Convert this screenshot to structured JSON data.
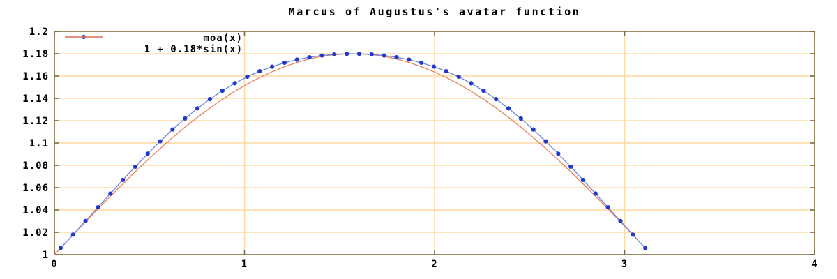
{
  "title": "Marcus of Augustus's avatar function",
  "legend": {
    "position": "top-left",
    "items": [
      {
        "label": "moa(x)"
      },
      {
        "label": "1 + 0.18*sin(x)"
      }
    ]
  },
  "chart_data": {
    "type": "line",
    "title": "Marcus of Augustus's avatar function",
    "xlabel": "",
    "ylabel": "",
    "xlim": [
      0,
      4
    ],
    "ylim": [
      1,
      1.2
    ],
    "grid": true,
    "legend_position": "top-left",
    "x_ticks": [
      {
        "value": 0,
        "label": "0"
      },
      {
        "value": 1,
        "label": "1"
      },
      {
        "value": 2,
        "label": "2"
      },
      {
        "value": 3,
        "label": "3"
      },
      {
        "value": 4,
        "label": "4"
      }
    ],
    "y_ticks": [
      {
        "value": 1.0,
        "label": "1"
      },
      {
        "value": 1.02,
        "label": "1.02"
      },
      {
        "value": 1.04,
        "label": "1.04"
      },
      {
        "value": 1.06,
        "label": "1.06"
      },
      {
        "value": 1.08,
        "label": "1.08"
      },
      {
        "value": 1.1,
        "label": "1.1"
      },
      {
        "value": 1.12,
        "label": "1.12"
      },
      {
        "value": 1.14,
        "label": "1.14"
      },
      {
        "value": 1.16,
        "label": "1.16"
      },
      {
        "value": 1.18,
        "label": "1.18"
      },
      {
        "value": 1.2,
        "label": "1.2"
      }
    ],
    "series": [
      {
        "name": "moa(x)",
        "type": "linespoints",
        "marker": "circle",
        "marker_color": "#2138cc",
        "line_color": "#6e86e2",
        "x": [
          0.0327,
          0.0982,
          0.1636,
          0.2291,
          0.2945,
          0.36,
          0.4254,
          0.4909,
          0.5563,
          0.6218,
          0.6872,
          0.7527,
          0.8181,
          0.8836,
          0.949,
          1.0145,
          1.0799,
          1.1454,
          1.2108,
          1.2763,
          1.3417,
          1.4072,
          1.4726,
          1.5381,
          1.6035,
          1.669,
          1.7344,
          1.7999,
          1.8653,
          1.9308,
          1.9962,
          2.0617,
          2.1271,
          2.1926,
          2.258,
          2.3235,
          2.3889,
          2.4544,
          2.5198,
          2.5853,
          2.6507,
          2.7162,
          2.7816,
          2.8471,
          2.9125,
          2.978,
          3.0434,
          3.1089
        ],
        "y": [
          1.0059,
          1.0179,
          1.0301,
          1.0424,
          1.0547,
          1.0669,
          1.0788,
          1.0904,
          1.1015,
          1.1121,
          1.1219,
          1.131,
          1.1393,
          1.1468,
          1.1535,
          1.1594,
          1.1643,
          1.1684,
          1.1719,
          1.1747,
          1.1768,
          1.1784,
          1.1794,
          1.1799,
          1.1799,
          1.1794,
          1.1784,
          1.1768,
          1.1747,
          1.1719,
          1.1684,
          1.1643,
          1.1594,
          1.1535,
          1.1468,
          1.1393,
          1.131,
          1.1219,
          1.1121,
          1.1015,
          1.0904,
          1.0788,
          1.0669,
          1.0547,
          1.0424,
          1.0301,
          1.0179,
          1.0059
        ]
      },
      {
        "name": "1 + 0.18*sin(x)",
        "type": "line",
        "line_color": "#e8835c",
        "x": [
          0.0,
          0.0327,
          0.0982,
          0.1636,
          0.2291,
          0.2945,
          0.36,
          0.4254,
          0.4909,
          0.5563,
          0.6218,
          0.6872,
          0.7527,
          0.8181,
          0.8836,
          0.949,
          1.0145,
          1.0799,
          1.1454,
          1.2108,
          1.2763,
          1.3417,
          1.4072,
          1.4726,
          1.5381,
          1.6035,
          1.669,
          1.7344,
          1.7999,
          1.8653,
          1.9308,
          1.9962,
          2.0617,
          2.1271,
          2.1926,
          2.258,
          2.3235,
          2.3889,
          2.4544,
          2.5198,
          2.5853,
          2.6507,
          2.7162,
          2.7816,
          2.8471,
          2.9125,
          2.978,
          3.0434,
          3.1089
        ],
        "y": [
          1.0,
          1.0059,
          1.0176,
          1.0293,
          1.0409,
          1.0523,
          1.0634,
          1.0743,
          1.0849,
          1.095,
          1.1049,
          1.1142,
          1.123,
          1.1314,
          1.1391,
          1.1463,
          1.1529,
          1.1587,
          1.1639,
          1.1684,
          1.1722,
          1.1753,
          1.1776,
          1.1791,
          1.1799,
          1.1799,
          1.1791,
          1.1776,
          1.1753,
          1.1722,
          1.1684,
          1.1639,
          1.1587,
          1.1529,
          1.1463,
          1.1391,
          1.1314,
          1.123,
          1.1142,
          1.1049,
          1.095,
          1.0849,
          1.0743,
          1.0634,
          1.0523,
          1.0409,
          1.0293,
          1.0176,
          1.0059
        ]
      }
    ],
    "colors": {
      "background": "#ffffff",
      "grid": "#ffd9a3",
      "border": "#9c8c60",
      "tick": "#6f684f",
      "text": "#000000"
    }
  }
}
